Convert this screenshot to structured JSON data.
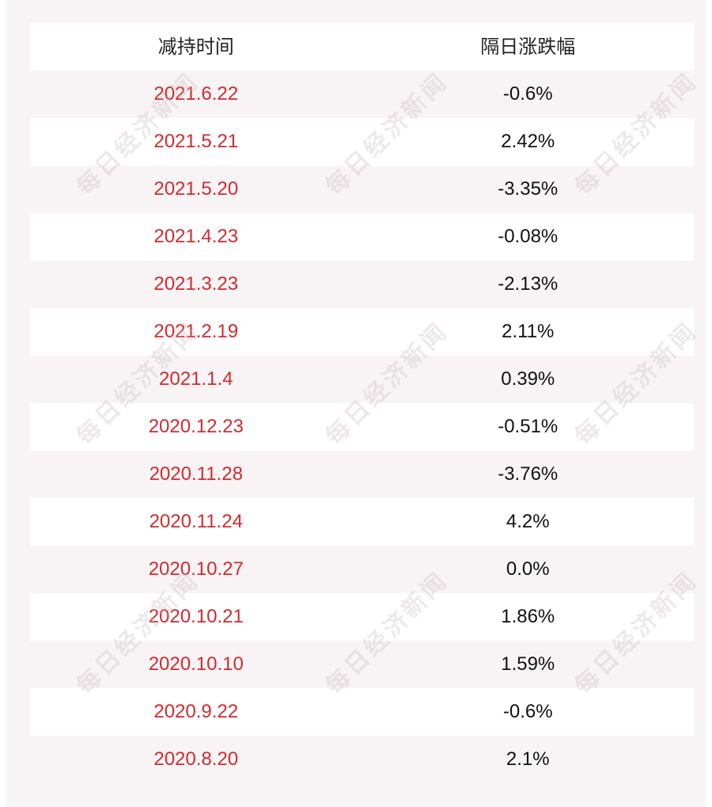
{
  "header": {
    "col_date": "减持时间",
    "col_change": "隔日涨跌幅"
  },
  "rows": [
    {
      "date": "2021.6.22",
      "change": "-0.6%"
    },
    {
      "date": "2021.5.21",
      "change": "2.42%"
    },
    {
      "date": "2021.5.20",
      "change": "-3.35%"
    },
    {
      "date": "2021.4.23",
      "change": "-0.08%"
    },
    {
      "date": "2021.3.23",
      "change": "-2.13%"
    },
    {
      "date": "2021.2.19",
      "change": "2.11%"
    },
    {
      "date": "2021.1.4",
      "change": "0.39%"
    },
    {
      "date": "2020.12.23",
      "change": "-0.51%"
    },
    {
      "date": "2020.11.28",
      "change": "-3.76%"
    },
    {
      "date": "2020.11.24",
      "change": "4.2%"
    },
    {
      "date": "2020.10.27",
      "change": "0.0%"
    },
    {
      "date": "2020.10.21",
      "change": "1.86%"
    },
    {
      "date": "2020.10.10",
      "change": "1.59%"
    },
    {
      "date": "2020.9.22",
      "change": "-0.6%"
    },
    {
      "date": "2020.8.20",
      "change": "2.1%"
    }
  ],
  "watermark": "每日经济新闻",
  "colors": {
    "date_text": "#d42a2f",
    "background_tint": "#f8f4f5"
  }
}
